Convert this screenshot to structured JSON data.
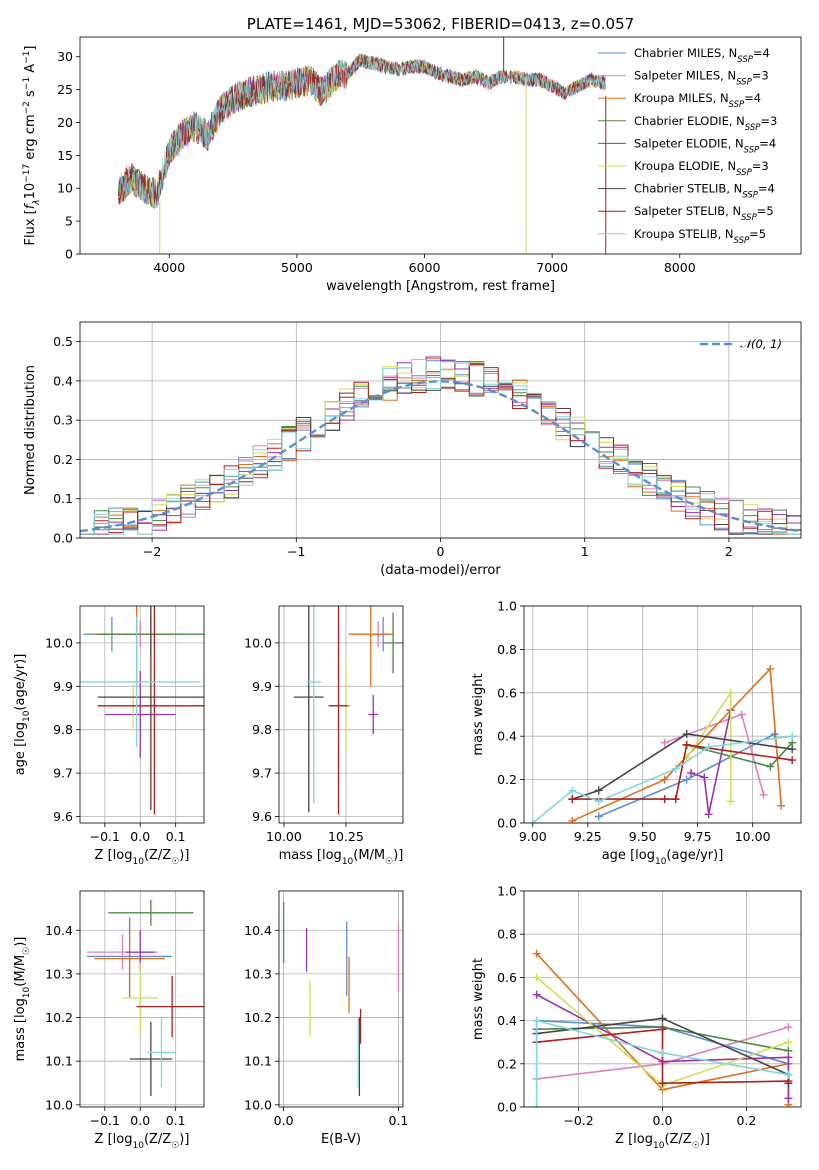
{
  "chart_data": [
    {
      "id": "spectrum",
      "type": "line",
      "title": "PLATE=1461, MJD=53062, FIBERID=0413, z=0.057",
      "xlabel": "wavelength [Angstrom, rest frame]",
      "ylabel": "Flux [fλ10⁻¹⁷ erg cm⁻² s⁻¹ A⁻¹]",
      "xlim": [
        3300,
        8950
      ],
      "ylim": [
        0,
        33
      ],
      "xticks": [
        4000,
        5000,
        6000,
        7000,
        8000
      ],
      "yticks": [
        0,
        5,
        10,
        15,
        20,
        25,
        30
      ],
      "grid": false,
      "legend_position": "top-right",
      "continuum": {
        "x": [
          3600,
          3700,
          3800,
          3900,
          4000,
          4100,
          4200,
          4300,
          4400,
          4500,
          4600,
          4700,
          4800,
          4900,
          5000,
          5100,
          5200,
          5300,
          5400,
          5500,
          5600,
          5700,
          5800,
          5900,
          6000,
          6100,
          6200,
          6300,
          6400,
          6500,
          6600,
          6700,
          6800,
          6900,
          7000,
          7100,
          7200,
          7300,
          7400
        ],
        "y": [
          9.5,
          11.5,
          10.0,
          9.0,
          15.5,
          18.0,
          19.5,
          18.0,
          22.0,
          23.5,
          24.5,
          25.0,
          25.5,
          25.5,
          26.0,
          26.5,
          24.5,
          27.0,
          27.5,
          29.5,
          29.0,
          28.5,
          28.0,
          28.5,
          28.5,
          27.5,
          27.0,
          26.5,
          27.0,
          26.0,
          27.0,
          27.0,
          26.5,
          26.5,
          25.5,
          24.5,
          25.5,
          26.5,
          26.0
        ]
      },
      "series": [
        {
          "name": "Chabrier MILES, N$_{SSP}$=4",
          "color": "#5a8fd8"
        },
        {
          "name": "Salpeter MILES, N$_{SSP}$=3",
          "color": "#e07fbf"
        },
        {
          "name": "Kroupa MILES, N$_{SSP}$=4",
          "color": "#e0701a"
        },
        {
          "name": "Chabrier ELODIE, N$_{SSP}$=3",
          "color": "#4a8a4a"
        },
        {
          "name": "Salpeter ELODIE, N$_{SSP}$=4",
          "color": "#9b30b0"
        },
        {
          "name": "Kroupa ELODIE, N$_{SSP}$=3",
          "color": "#cfe052"
        },
        {
          "name": "Chabrier STELIB, N$_{SSP}$=4",
          "color": "#454545"
        },
        {
          "name": "Salpeter STELIB, N$_{SSP}$=5",
          "color": "#b01e1e"
        },
        {
          "name": "Kroupa STELIB, N$_{SSP}$=5",
          "color": "#7fd6dc"
        }
      ],
      "legend_labels": [
        {
          "name": "Chabrier MILES, N",
          "sub": "SSP",
          "val": "=4"
        },
        {
          "name": "Salpeter MILES, N",
          "sub": "SSP",
          "val": "=3"
        },
        {
          "name": "Kroupa MILES, N",
          "sub": "SSP",
          "val": "=4"
        },
        {
          "name": "Chabrier ELODIE, N",
          "sub": "SSP",
          "val": "=3"
        },
        {
          "name": "Salpeter ELODIE, N",
          "sub": "SSP",
          "val": "=4"
        },
        {
          "name": "Kroupa ELODIE, N",
          "sub": "SSP",
          "val": "=3"
        },
        {
          "name": "Chabrier STELIB, N",
          "sub": "SSP",
          "val": "=4"
        },
        {
          "name": "Salpeter STELIB, N",
          "sub": "SSP",
          "val": "=5"
        },
        {
          "name": "Kroupa STELIB, N",
          "sub": "SSP",
          "val": "=5"
        }
      ]
    },
    {
      "id": "residuals",
      "type": "area",
      "xlabel": "(data-model)/error",
      "ylabel": "Normed distribution",
      "xlim": [
        -2.5,
        2.5
      ],
      "ylim": [
        0,
        0.55
      ],
      "xticks": [
        -2,
        -1,
        0,
        1,
        2
      ],
      "yticks": [
        0.0,
        0.1,
        0.2,
        0.3,
        0.4,
        0.5
      ],
      "grid": true,
      "legend_position": "top-right",
      "reference": {
        "name": "𝒩(0, 1)",
        "color": "#5a8fd8"
      },
      "bin_width": 0.1,
      "x_start": -2.5
    },
    {
      "id": "age_vs_Z",
      "type": "scatter",
      "xlabel": "Z [log10(Z/Z☉)]",
      "ylabel": "age  [log10(age/yr)]",
      "xlim": [
        -0.17,
        0.18
      ],
      "ylim": [
        9.585,
        10.085
      ],
      "xticks": [
        -0.1,
        0.0,
        0.1
      ],
      "yticks": [
        9.6,
        9.7,
        9.8,
        9.9,
        10.0
      ],
      "grid": true,
      "points": [
        {
          "color": "#5a8fd8",
          "x": -0.08,
          "xerr": 0.08,
          "y": 10.02,
          "yerr": 0.04
        },
        {
          "color": "#e07fbf",
          "x": 0.0,
          "xerr": 0.09,
          "y": 10.02,
          "yerr": 0.03
        },
        {
          "color": "#e0701a",
          "x": -0.01,
          "xerr": 0.12,
          "y": 10.02,
          "yerr": 0.12
        },
        {
          "color": "#4a8a4a",
          "x": 0.03,
          "xerr": 0.15,
          "y": 10.02,
          "yerr": 0.05
        },
        {
          "color": "#9b30b0",
          "x": 0.0,
          "xerr": 0.1,
          "y": 9.835,
          "yerr": 0.1
        },
        {
          "color": "#cfe052",
          "x": -0.02,
          "xerr": 0.06,
          "y": 9.855,
          "yerr": 0.05
        },
        {
          "color": "#454545",
          "x": 0.03,
          "xerr": 0.15,
          "y": 9.875,
          "yerr": 0.26
        },
        {
          "color": "#b01e1e",
          "x": 0.04,
          "xerr": 0.16,
          "y": 9.855,
          "yerr": 0.25
        },
        {
          "color": "#7fd6dc",
          "x": -0.01,
          "xerr": 0.18,
          "y": 9.91,
          "yerr": 0.15
        }
      ]
    },
    {
      "id": "age_vs_mass",
      "type": "scatter",
      "xlabel": "mass [log10(M/M☉)]",
      "ylabel": "",
      "xlim": [
        9.98,
        10.48
      ],
      "ylim": [
        9.585,
        10.085
      ],
      "xticks": [
        10.0,
        10.25
      ],
      "yticks": [
        9.6,
        9.7,
        9.8,
        9.9,
        10.0
      ],
      "grid": true,
      "points": [
        {
          "color": "#5a8fd8",
          "x": 10.4,
          "xerr": 0.04,
          "y": 10.02,
          "yerr": 0.04
        },
        {
          "color": "#e07fbf",
          "x": 10.38,
          "xerr": 0.03,
          "y": 10.02,
          "yerr": 0.03
        },
        {
          "color": "#e0701a",
          "x": 10.35,
          "xerr": 0.09,
          "y": 10.02,
          "yerr": 0.12
        },
        {
          "color": "#4a8a4a",
          "x": 10.44,
          "xerr": 0.04,
          "y": 10.0,
          "yerr": 0.07
        },
        {
          "color": "#9b30b0",
          "x": 10.36,
          "xerr": 0.02,
          "y": 9.835,
          "yerr": 0.045
        },
        {
          "color": "#cfe052",
          "x": 10.25,
          "xerr": 0.02,
          "y": 9.855,
          "yerr": 0.1
        },
        {
          "color": "#454545",
          "x": 10.1,
          "xerr": 0.06,
          "y": 9.875,
          "yerr": 0.265
        },
        {
          "color": "#b01e1e",
          "x": 10.22,
          "xerr": 0.04,
          "y": 9.855,
          "yerr": 0.25
        },
        {
          "color": "#7fd6dc",
          "x": 10.12,
          "xerr": 0.03,
          "y": 9.91,
          "yerr": 0.28
        }
      ]
    },
    {
      "id": "weight_vs_age",
      "type": "line",
      "xlabel": "age  [log10(age/yr)]",
      "ylabel": "mass weight",
      "xlim": [
        8.96,
        10.22
      ],
      "ylim": [
        0,
        1.0
      ],
      "xticks": [
        9.0,
        9.25,
        9.5,
        9.75,
        10.0
      ],
      "yticks": [
        0.0,
        0.2,
        0.4,
        0.6,
        0.8,
        1.0
      ],
      "grid": true,
      "series": [
        {
          "color": "#5a8fd8",
          "x": [
            9.3,
            9.7,
            10.1
          ],
          "y": [
            0.03,
            0.2,
            0.41
          ]
        },
        {
          "color": "#e07fbf",
          "x": [
            9.6,
            9.95,
            10.05
          ],
          "y": [
            0.37,
            0.5,
            0.13
          ]
        },
        {
          "color": "#e0701a",
          "x": [
            9.18,
            9.6,
            10.08,
            10.13
          ],
          "y": [
            0.01,
            0.2,
            0.71,
            0.08
          ]
        },
        {
          "color": "#4a8a4a",
          "x": [
            9.7,
            10.08,
            10.18
          ],
          "y": [
            0.36,
            0.26,
            0.37
          ]
        },
        {
          "color": "#9b30b0",
          "x": [
            9.72,
            9.78,
            9.8,
            9.9
          ],
          "y": [
            0.23,
            0.21,
            0.04,
            0.52
          ]
        },
        {
          "color": "#cfe052",
          "x": [
            9.7,
            9.9,
            9.9
          ],
          "y": [
            0.3,
            0.6,
            0.1
          ]
        },
        {
          "color": "#454545",
          "x": [
            9.18,
            9.3,
            9.7,
            10.18
          ],
          "y": [
            0.11,
            0.15,
            0.41,
            0.34
          ]
        },
        {
          "color": "#b01e1e",
          "x": [
            9.18,
            9.6,
            9.65,
            9.7,
            10.18
          ],
          "y": [
            0.11,
            0.11,
            0.11,
            0.36,
            0.29
          ]
        },
        {
          "color": "#7fd6dc",
          "x": [
            9.0,
            9.18,
            9.3,
            9.65,
            9.8,
            10.18
          ],
          "y": [
            0.0,
            0.15,
            0.1,
            0.25,
            0.35,
            0.4
          ]
        }
      ]
    },
    {
      "id": "mass_vs_Z",
      "type": "scatter",
      "xlabel": "Z [log10(Z/Z☉)]",
      "ylabel": "mass [log10(M/M☉)]",
      "xlim": [
        -0.17,
        0.18
      ],
      "ylim": [
        9.995,
        10.49
      ],
      "xticks": [
        -0.1,
        0.0,
        0.1
      ],
      "yticks": [
        10.0,
        10.1,
        10.2,
        10.3,
        10.4
      ],
      "grid": true,
      "points": [
        {
          "color": "#5a8fd8",
          "x": -0.03,
          "xerr": 0.12,
          "y": 10.34,
          "yerr": 0.09
        },
        {
          "color": "#e07fbf",
          "x": -0.05,
          "xerr": 0.1,
          "y": 10.35,
          "yerr": 0.04
        },
        {
          "color": "#e0701a",
          "x": -0.03,
          "xerr": 0.1,
          "y": 10.335,
          "yerr": 0.09
        },
        {
          "color": "#4a8a4a",
          "x": 0.03,
          "xerr": 0.12,
          "y": 10.44,
          "yerr": 0.03
        },
        {
          "color": "#9b30b0",
          "x": 0.0,
          "xerr": 0.04,
          "y": 10.35,
          "yerr": 0.05
        },
        {
          "color": "#cfe052",
          "x": 0.0,
          "xerr": 0.05,
          "y": 10.245,
          "yerr": 0.08
        },
        {
          "color": "#454545",
          "x": 0.03,
          "xerr": 0.06,
          "y": 10.105,
          "yerr": 0.085
        },
        {
          "color": "#b01e1e",
          "x": 0.09,
          "xerr": 0.1,
          "y": 10.225,
          "yerr": 0.07
        },
        {
          "color": "#7fd6dc",
          "x": 0.06,
          "xerr": 0.04,
          "y": 10.12,
          "yerr": 0.08
        }
      ]
    },
    {
      "id": "mass_vs_ebv",
      "type": "scatter",
      "xlabel": "E(B-V)",
      "ylabel": "",
      "xlim": [
        -0.004,
        0.104
      ],
      "ylim": [
        9.995,
        10.49
      ],
      "xticks": [
        0.0,
        0.1
      ],
      "yticks": [
        10.0,
        10.1,
        10.2,
        10.3,
        10.4
      ],
      "grid": true,
      "points": [
        {
          "color": "#5a8fd8",
          "x": 0.055,
          "xerr": 0,
          "y": 10.335,
          "yerr": 0.085
        },
        {
          "color": "#e07fbf",
          "x": 0.1,
          "xerr": 0,
          "y": 10.34,
          "yerr": 0.08
        },
        {
          "color": "#e0701a",
          "x": 0.057,
          "xerr": 0,
          "y": 10.275,
          "yerr": 0.065
        },
        {
          "color": "#4a8a4a",
          "x": 0.0,
          "xerr": 0,
          "y": 10.395,
          "yerr": 0.07
        },
        {
          "color": "#9b30b0",
          "x": 0.02,
          "xerr": 0,
          "y": 10.355,
          "yerr": 0.05
        },
        {
          "color": "#cfe052",
          "x": 0.023,
          "xerr": 0,
          "y": 10.22,
          "yerr": 0.065
        },
        {
          "color": "#454545",
          "x": 0.066,
          "xerr": 0,
          "y": 10.11,
          "yerr": 0.09
        },
        {
          "color": "#b01e1e",
          "x": 0.067,
          "xerr": 0,
          "y": 10.18,
          "yerr": 0.04
        },
        {
          "color": "#7fd6dc",
          "x": 0.065,
          "xerr": 0,
          "y": 10.12,
          "yerr": 0.08
        }
      ]
    },
    {
      "id": "weight_vs_Z",
      "type": "line",
      "xlabel": "Z [log10(Z/Z☉)]",
      "ylabel": "mass weight",
      "xlim": [
        -0.33,
        0.33
      ],
      "ylim": [
        0,
        1.0
      ],
      "xticks": [
        -0.2,
        0.0,
        0.2
      ],
      "yticks": [
        0.0,
        0.2,
        0.4,
        0.6,
        0.8,
        1.0
      ],
      "grid": true,
      "series": [
        {
          "color": "#5a8fd8",
          "x": [
            -0.3,
            0.0,
            0.3
          ],
          "y": [
            0.4,
            0.37,
            0.2
          ]
        },
        {
          "color": "#e07fbf",
          "x": [
            -0.3,
            0.0,
            0.3
          ],
          "y": [
            0.13,
            0.2,
            0.37
          ]
        },
        {
          "color": "#e0701a",
          "x": [
            -0.3,
            0.0,
            0.3,
            0.3
          ],
          "y": [
            0.71,
            0.08,
            0.2,
            0.01
          ]
        },
        {
          "color": "#4a8a4a",
          "x": [
            -0.3,
            0.0,
            0.3
          ],
          "y": [
            0.36,
            0.37,
            0.26
          ]
        },
        {
          "color": "#9b30b0",
          "x": [
            -0.3,
            0.0,
            0.3,
            0.3
          ],
          "y": [
            0.52,
            0.21,
            0.23,
            0.04
          ]
        },
        {
          "color": "#cfe052",
          "x": [
            -0.3,
            0.0,
            0.3
          ],
          "y": [
            0.6,
            0.1,
            0.3
          ]
        },
        {
          "color": "#454545",
          "x": [
            -0.3,
            0.0,
            0.3,
            0.3
          ],
          "y": [
            0.34,
            0.41,
            0.15,
            0.11
          ]
        },
        {
          "color": "#b01e1e",
          "x": [
            -0.3,
            0.0,
            0.0,
            0.3
          ],
          "y": [
            0.3,
            0.36,
            0.11,
            0.12
          ]
        },
        {
          "color": "#7fd6dc",
          "x": [
            -0.3,
            -0.3,
            0.0,
            0.3
          ],
          "y": [
            0.0,
            0.4,
            0.25,
            0.15
          ]
        }
      ]
    }
  ]
}
